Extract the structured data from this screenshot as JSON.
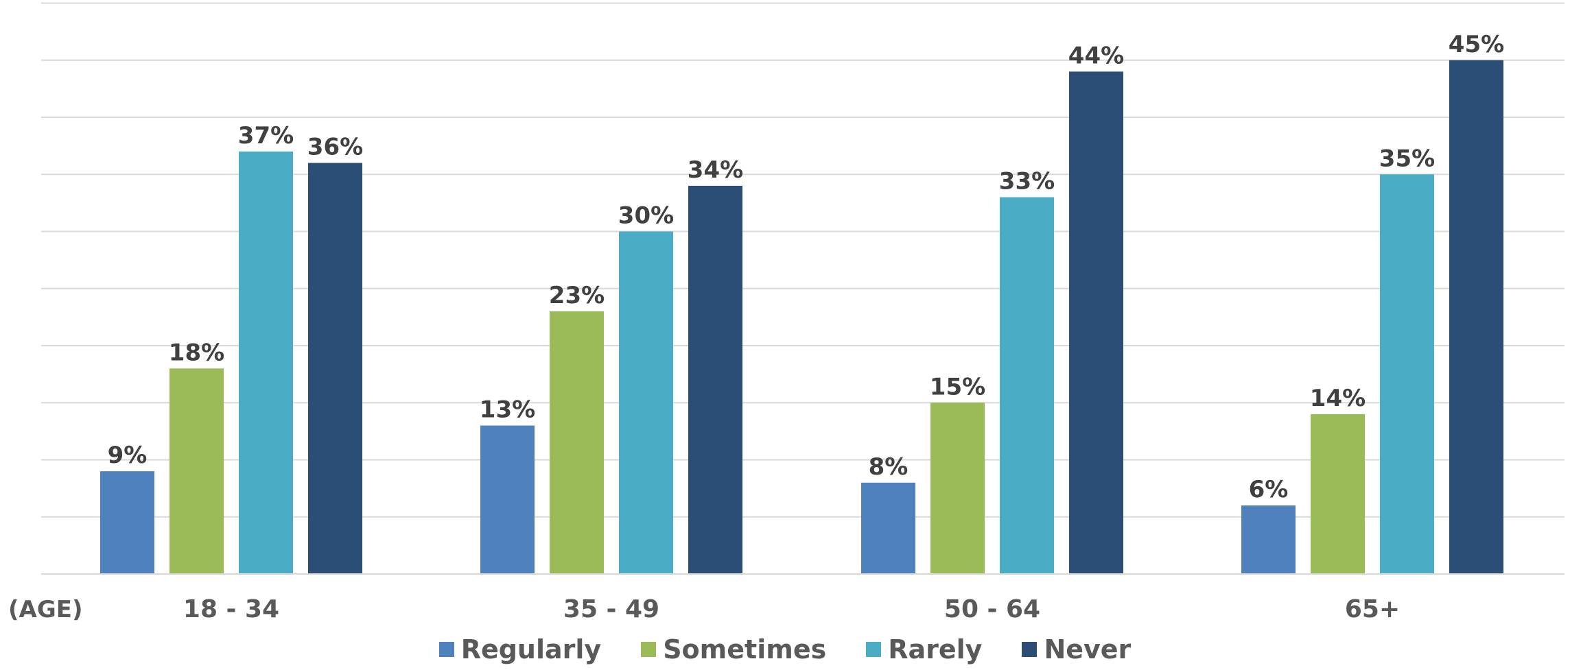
{
  "chart_data": {
    "type": "bar",
    "x_axis_prefix": "(AGE)",
    "categories": [
      "18 - 34",
      "35 - 49",
      "50 - 64",
      "65+"
    ],
    "series": [
      {
        "name": "Regularly",
        "color": "#4F81BD",
        "values": [
          9,
          13,
          8,
          6
        ],
        "labels": [
          "9%",
          "13%",
          "8%",
          "6%"
        ]
      },
      {
        "name": "Sometimes",
        "color": "#9BBB59",
        "values": [
          18,
          23,
          15,
          14
        ],
        "labels": [
          "18%",
          "23%",
          "15%",
          "14%"
        ]
      },
      {
        "name": "Rarely",
        "color": "#4BACC6",
        "values": [
          37,
          30,
          33,
          35
        ],
        "labels": [
          "37%",
          "30%",
          "33%",
          "35%"
        ]
      },
      {
        "name": "Never",
        "color": "#2C4D75",
        "values": [
          36,
          34,
          44,
          45
        ],
        "labels": [
          "36%",
          "34%",
          "44%",
          "45%"
        ]
      }
    ],
    "ylim": [
      0,
      50
    ],
    "grid": true,
    "legend_position": "bottom"
  }
}
